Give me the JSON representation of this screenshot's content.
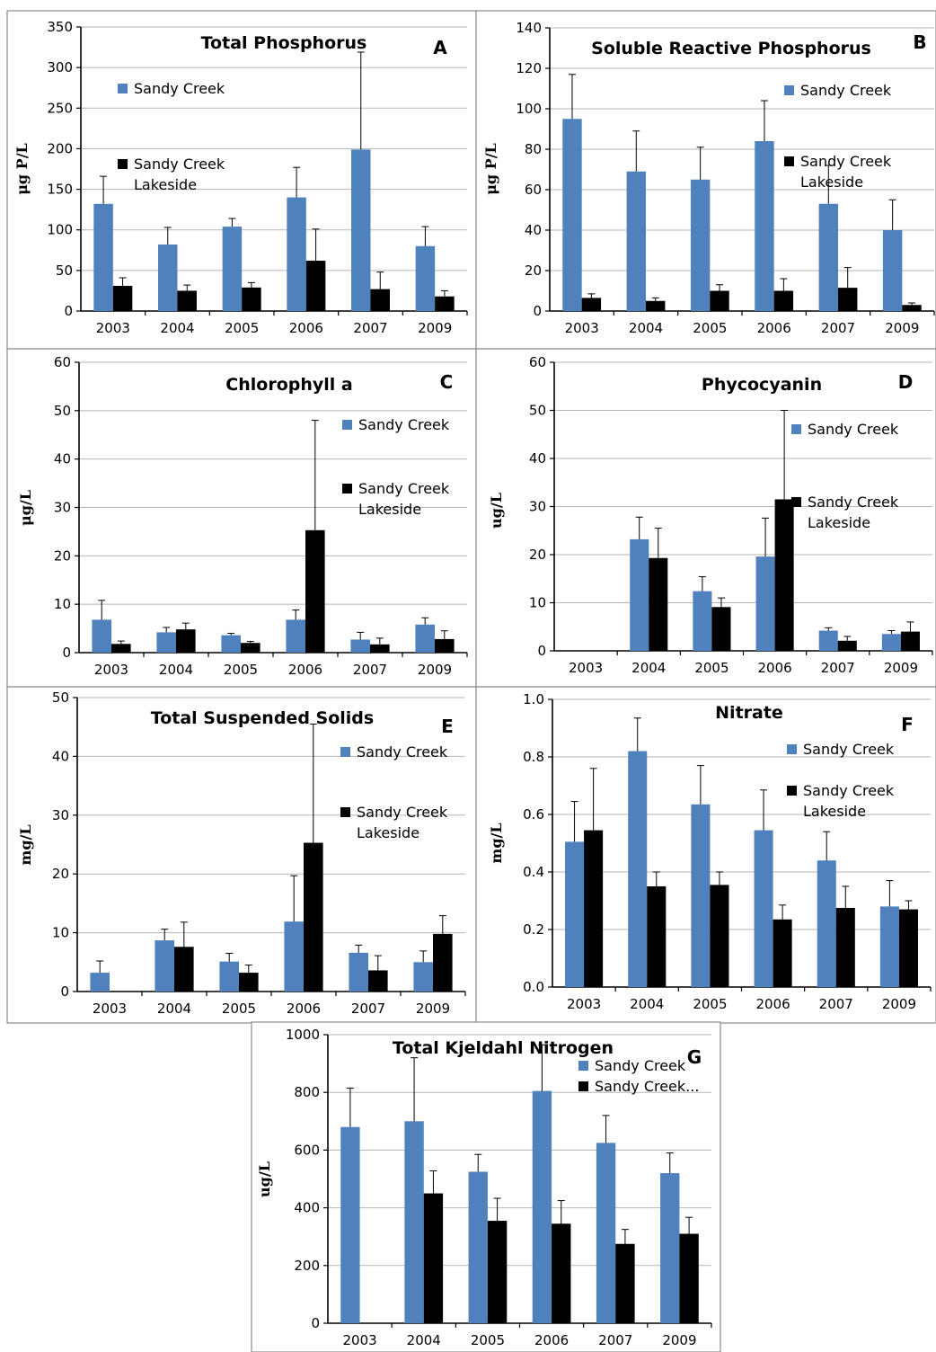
{
  "colors": {
    "sandy_creek": "#4f81bd",
    "sandy_creek_lakeside": "#000000"
  },
  "chart_data": [
    {
      "id": "A",
      "type": "bar",
      "title": "Total Phosphorus",
      "letter": "A",
      "ylabel": "μg P/L",
      "ylim": [
        0,
        350
      ],
      "yticks": [
        0,
        50,
        100,
        150,
        200,
        250,
        300,
        350
      ],
      "categories": [
        "2003",
        "2004",
        "2005",
        "2006",
        "2007",
        "2009"
      ],
      "series": [
        {
          "name": "Sandy Creek",
          "values": [
            132,
            82,
            104,
            140,
            199,
            80
          ],
          "errors": [
            34,
            21,
            10,
            37,
            120,
            24
          ]
        },
        {
          "name": "Sandy Creek Lakeside",
          "values": [
            31,
            25,
            29,
            62,
            27,
            18
          ],
          "errors": [
            10,
            7,
            6,
            39,
            21,
            7
          ]
        }
      ],
      "legend": [
        [
          "Sandy Creek"
        ],
        [
          "Sandy Creek",
          "Lakeside"
        ]
      ]
    },
    {
      "id": "B",
      "type": "bar",
      "title": "Soluble Reactive Phosphorus",
      "letter": "B",
      "ylabel": "μg P/L",
      "ylim": [
        0,
        140
      ],
      "yticks": [
        0,
        20,
        40,
        60,
        80,
        100,
        120,
        140
      ],
      "categories": [
        "2003",
        "2004",
        "2005",
        "2006",
        "2007",
        "2009"
      ],
      "series": [
        {
          "name": "Sandy Creek",
          "values": [
            95,
            69,
            65,
            84,
            53,
            40
          ],
          "errors": [
            22,
            20,
            16,
            20,
            19,
            15
          ]
        },
        {
          "name": "Sandy Creek Lakeside",
          "values": [
            6.5,
            5,
            10,
            10,
            11.5,
            3
          ],
          "errors": [
            2,
            1.5,
            3,
            6,
            10,
            1
          ]
        }
      ],
      "legend": [
        [
          "Sandy Creek"
        ],
        [
          "Sandy Creek",
          "Lakeside"
        ]
      ]
    },
    {
      "id": "C",
      "type": "bar",
      "title": "Chlorophyll a",
      "letter": "C",
      "ylabel": "μg/L",
      "ylim": [
        0,
        60
      ],
      "yticks": [
        0,
        10,
        20,
        30,
        40,
        50,
        60
      ],
      "categories": [
        "2003",
        "2004",
        "2005",
        "2006",
        "2007",
        "2009"
      ],
      "series": [
        {
          "name": "Sandy Creek",
          "values": [
            6.8,
            4.2,
            3.6,
            6.8,
            2.7,
            5.8
          ],
          "errors": [
            4,
            1,
            0.4,
            2,
            1.5,
            1.4
          ]
        },
        {
          "name": "Sandy Creek Lakeside",
          "values": [
            1.8,
            4.8,
            2,
            25.3,
            1.7,
            2.8
          ],
          "errors": [
            0.6,
            1.3,
            0.3,
            22.7,
            1.3,
            1.7
          ]
        }
      ],
      "legend": [
        [
          "Sandy Creek"
        ],
        [
          "Sandy Creek",
          "Lakeside"
        ]
      ]
    },
    {
      "id": "D",
      "type": "bar",
      "title": "Phycocyanin",
      "letter": "D",
      "ylabel": "ug/L",
      "ylim": [
        0,
        60
      ],
      "yticks": [
        0,
        10,
        20,
        30,
        40,
        50,
        60
      ],
      "categories": [
        "2003",
        "2004",
        "2005",
        "2006",
        "2007",
        "2009"
      ],
      "series": [
        {
          "name": "Sandy Creek",
          "values": [
            null,
            23.2,
            12.4,
            19.6,
            4.2,
            3.5
          ],
          "errors": [
            null,
            4.6,
            3,
            8,
            0.6,
            0.7
          ]
        },
        {
          "name": "Sandy Creek Lakeside",
          "values": [
            null,
            19.3,
            9.1,
            31.5,
            2.1,
            4
          ],
          "errors": [
            null,
            6.2,
            1.9,
            18.5,
            0.9,
            2
          ]
        }
      ],
      "legend": [
        [
          "Sandy Creek"
        ],
        [
          "Sandy Creek",
          "Lakeside"
        ]
      ]
    },
    {
      "id": "E",
      "type": "bar",
      "title": "Total Suspended Solids",
      "letter": "E",
      "ylabel": "mg/L",
      "ylim": [
        0,
        50
      ],
      "yticks": [
        0,
        10,
        20,
        30,
        40,
        50
      ],
      "categories": [
        "2003",
        "2004",
        "2005",
        "2006",
        "2007",
        "2009"
      ],
      "series": [
        {
          "name": "Sandy Creek",
          "values": [
            3.2,
            8.7,
            5.1,
            11.9,
            6.6,
            5
          ],
          "errors": [
            2,
            1.9,
            1.4,
            7.8,
            1.3,
            1.9
          ]
        },
        {
          "name": "Sandy Creek Lakeside",
          "values": [
            null,
            7.6,
            3.2,
            25.3,
            3.6,
            9.8
          ],
          "errors": [
            null,
            4.2,
            1.3,
            20.2,
            2.5,
            3.1
          ]
        }
      ],
      "legend": [
        [
          "Sandy Creek"
        ],
        [
          "Sandy Creek",
          "Lakeside"
        ]
      ]
    },
    {
      "id": "F",
      "type": "bar",
      "title": "Nitrate",
      "letter": "F",
      "ylabel": "mg/L",
      "ylim": [
        0,
        1.0
      ],
      "yticks": [
        "0.0",
        "0.2",
        "0.4",
        "0.6",
        "0.8",
        "1.0"
      ],
      "categories": [
        "2003",
        "2004",
        "2005",
        "2006",
        "2007",
        "2009"
      ],
      "series": [
        {
          "name": "Sandy Creek",
          "values": [
            0.505,
            0.82,
            0.635,
            0.545,
            0.44,
            0.28
          ],
          "errors": [
            0.14,
            0.115,
            0.135,
            0.14,
            0.1,
            0.09
          ]
        },
        {
          "name": "Sandy Creek Lakeside",
          "values": [
            0.545,
            0.35,
            0.355,
            0.235,
            0.275,
            0.27
          ],
          "errors": [
            0.215,
            0.05,
            0.045,
            0.05,
            0.075,
            0.03
          ]
        }
      ],
      "legend": [
        [
          "Sandy Creek"
        ],
        [
          "Sandy Creek",
          "Lakeside"
        ]
      ]
    },
    {
      "id": "G",
      "type": "bar",
      "title": "Total Kjeldahl Nitrogen",
      "letter": "G",
      "ylabel": "ug/L",
      "ylim": [
        0,
        1000
      ],
      "yticks": [
        0,
        200,
        400,
        600,
        800,
        1000
      ],
      "categories": [
        "2003",
        "2004",
        "2005",
        "2006",
        "2007",
        "2009"
      ],
      "series": [
        {
          "name": "Sandy Creek",
          "values": [
            680,
            700,
            525,
            805,
            625,
            520
          ],
          "errors": [
            135,
            220,
            60,
            160,
            95,
            70
          ]
        },
        {
          "name": "Sandy Creek Lakeside",
          "values": [
            null,
            450,
            355,
            345,
            275,
            310
          ],
          "errors": [
            null,
            78,
            78,
            80,
            50,
            57
          ]
        }
      ],
      "legend": [
        [
          "Sandy Creek"
        ],
        [
          "Sandy Creek..."
        ]
      ]
    }
  ]
}
